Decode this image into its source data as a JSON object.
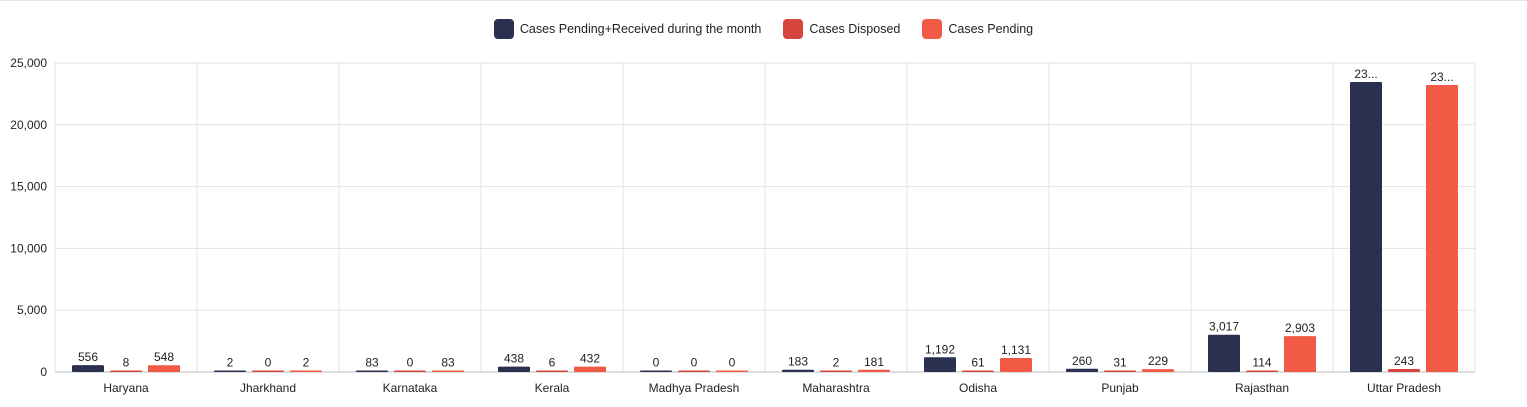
{
  "chart_data": {
    "type": "bar",
    "title": "",
    "xlabel": "",
    "ylabel": "",
    "ylim": [
      0,
      25000
    ],
    "yticks": [
      0,
      5000,
      10000,
      15000,
      20000,
      25000
    ],
    "ytick_labels": [
      "0",
      "5,000",
      "10,000",
      "15,000",
      "20,000",
      "25,000"
    ],
    "grid": true,
    "legend_position": "top-center",
    "categories": [
      "Haryana",
      "Jharkhand",
      "Karnataka",
      "Kerala",
      "Madhya Pradesh",
      "Maharashtra",
      "Odisha",
      "Punjab",
      "Rajasthan",
      "Uttar Pradesh"
    ],
    "series": [
      {
        "name": "Cases Pending+Received during the month",
        "color": "#2a3150",
        "values": [
          556,
          2,
          83,
          438,
          0,
          183,
          1192,
          260,
          3017,
          23460
        ],
        "labels": [
          "556",
          "2",
          "83",
          "438",
          "0",
          "183",
          "1,192",
          "260",
          "3,017",
          "23..."
        ]
      },
      {
        "name": "Cases Disposed",
        "color": "#d7443e",
        "values": [
          8,
          0,
          0,
          6,
          0,
          2,
          61,
          31,
          114,
          243
        ],
        "labels": [
          "8",
          "0",
          "0",
          "6",
          "0",
          "2",
          "61",
          "31",
          "114",
          "243"
        ]
      },
      {
        "name": "Cases Pending",
        "color": "#f15a44",
        "values": [
          548,
          2,
          83,
          432,
          0,
          181,
          1131,
          229,
          2903,
          23220
        ],
        "labels": [
          "548",
          "2",
          "83",
          "432",
          "0",
          "181",
          "1,131",
          "229",
          "2,903",
          "23..."
        ]
      }
    ]
  }
}
